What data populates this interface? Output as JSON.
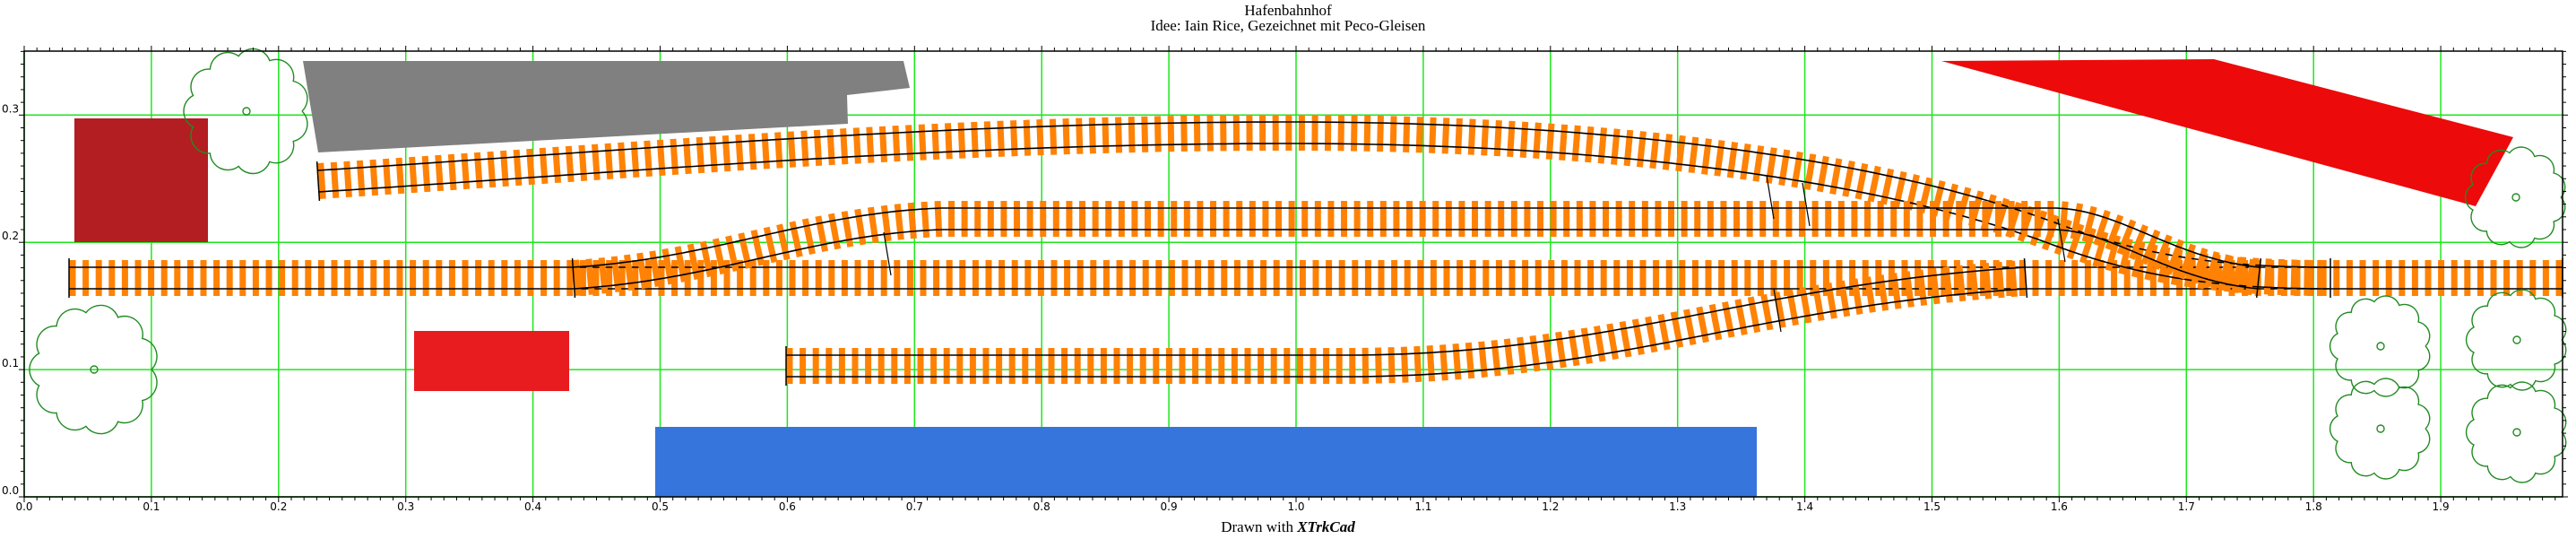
{
  "header": {
    "title": "Hafenbahnhof",
    "subtitle": "Idee: Iain Rice, Gezeichnet mit Peco-Gleisen"
  },
  "footer": {
    "prefix": "Drawn with ",
    "app": "XTrkCad"
  },
  "axes": {
    "x_ticks": [
      "0.0",
      "0.1",
      "0.2",
      "0.3",
      "0.4",
      "0.5",
      "0.6",
      "0.7",
      "0.8",
      "0.9",
      "1.0",
      "1.1",
      "1.2",
      "1.3",
      "1.4",
      "1.5",
      "1.6",
      "1.7",
      "1.8",
      "1.9"
    ],
    "y_ticks": [
      "0.0",
      "0.1",
      "0.2",
      "0.3"
    ]
  },
  "colors": {
    "grid": "#1ee61e",
    "tie": "#ff8205",
    "rail": "#000000",
    "tree": "#228b22",
    "building_brown": "#b31e22",
    "building_grey": "#808080",
    "building_red": "#ec0a0a",
    "building_red_small": "#e81c1f",
    "quay_blue": "#3575dc"
  },
  "objects": {
    "trees": 7,
    "tracks": [
      "main-track",
      "upper-curved-track",
      "middle-siding",
      "lower-siding"
    ]
  }
}
